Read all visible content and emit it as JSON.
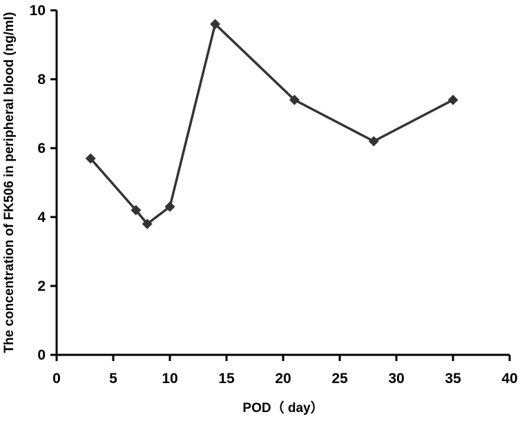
{
  "chart_data": {
    "type": "line",
    "title": "",
    "xlabel": "POD（ day）",
    "ylabel": "The concentration of FK506 in peripheral blood (ng/ml)",
    "xlim": [
      0,
      40
    ],
    "ylim": [
      0,
      10
    ],
    "xticks": [
      0,
      5,
      10,
      15,
      20,
      25,
      30,
      35,
      40
    ],
    "yticks": [
      0,
      2,
      4,
      6,
      8,
      10
    ],
    "grid": false,
    "legend": "none",
    "marker": "diamond",
    "colors": {
      "line": "#333333",
      "axis": "#000000"
    },
    "x": [
      3,
      7,
      8,
      10,
      14,
      21,
      28,
      35
    ],
    "y": [
      5.7,
      4.2,
      3.8,
      4.3,
      9.6,
      7.4,
      6.2,
      7.4
    ]
  }
}
